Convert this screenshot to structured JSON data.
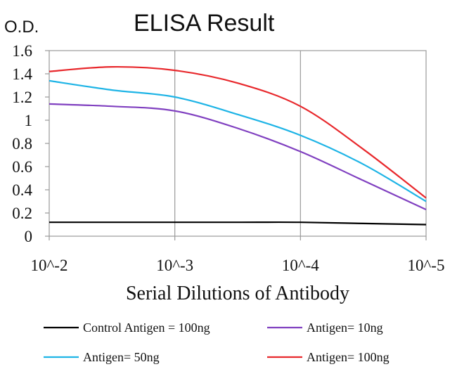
{
  "chart_data": {
    "type": "line",
    "title": "ELISA Result",
    "ylabel": "O.D.",
    "xlabel": "Serial Dilutions of Antibody",
    "x_categories": [
      "10^-2",
      "10^-3",
      "10^-4",
      "10^-5"
    ],
    "x": [
      0,
      0.5,
      1,
      1.5,
      2,
      2.5,
      3
    ],
    "y_ticks": [
      "0",
      "0.2",
      "0.4",
      "0.6",
      "0.8",
      "1",
      "1.2",
      "1.4",
      "1.6"
    ],
    "ylim": [
      0,
      1.6
    ],
    "grid": {
      "horizontal": false,
      "vertical": true
    },
    "legend_position": "bottom",
    "series": [
      {
        "name": "Control Antigen = 100ng",
        "color": "#000000",
        "values": [
          0.12,
          0.12,
          0.12,
          0.12,
          0.12,
          0.11,
          0.1
        ]
      },
      {
        "name": "Antigen= 10ng",
        "color": "#8040C0",
        "values": [
          1.14,
          1.12,
          1.08,
          0.93,
          0.73,
          0.48,
          0.23
        ]
      },
      {
        "name": "Antigen= 50ng",
        "color": "#1EB4E6",
        "values": [
          1.34,
          1.26,
          1.2,
          1.05,
          0.87,
          0.62,
          0.3
        ]
      },
      {
        "name": "Antigen= 100ng",
        "color": "#E8282C",
        "values": [
          1.42,
          1.46,
          1.43,
          1.32,
          1.12,
          0.75,
          0.33
        ]
      }
    ]
  }
}
